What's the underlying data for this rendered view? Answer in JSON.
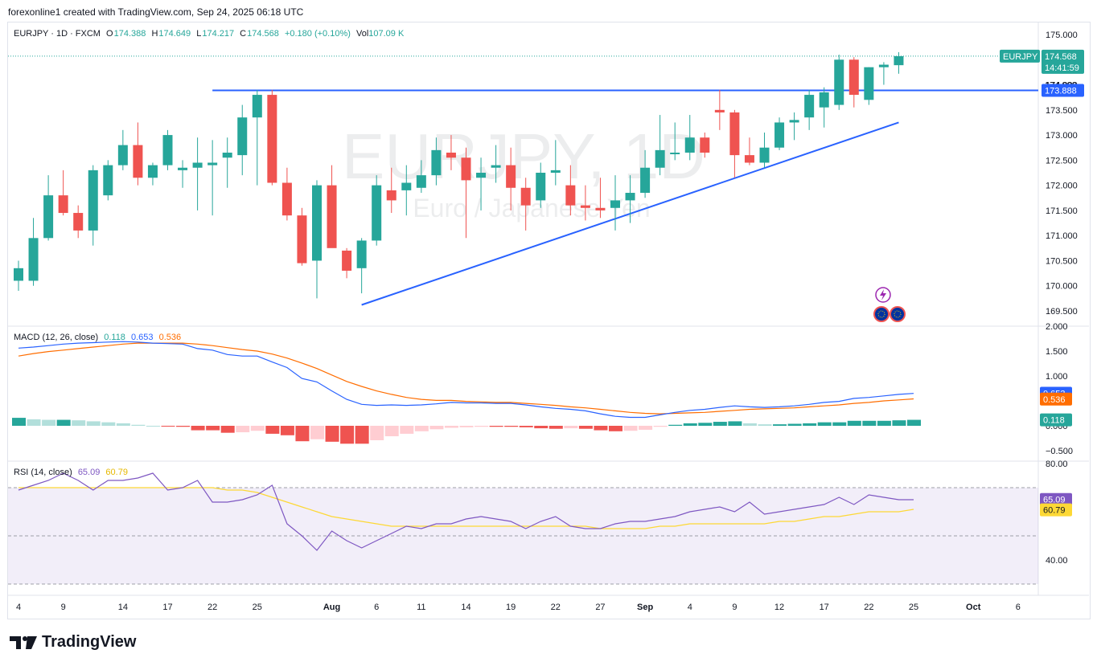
{
  "caption": "forexonline1 created with TradingView.com, Sep 24, 2025 06:18 UTC",
  "brand": "TradingView",
  "watermark": {
    "symbol": "EURJPY, 1D",
    "description": "Euro / Japanese Yen"
  },
  "legend": {
    "symbol": "EURJPY · 1D · FXCM",
    "o_label": "O",
    "o": "174.388",
    "h_label": "H",
    "h": "174.649",
    "l_label": "L",
    "l": "174.217",
    "c_label": "C",
    "c": "174.568",
    "change": "+0.180 (+0.10%)",
    "vol_label": "Vol",
    "vol": "107.09 K"
  },
  "price_badges": {
    "symbol": "EURJPY",
    "last": "174.568",
    "countdown": "14:41:59",
    "level": "173.888",
    "hidden_label": "174.000"
  },
  "macd_legend": {
    "name": "MACD (12, 26, close)",
    "hist": "0.118",
    "macd": "0.653",
    "signal": "0.536"
  },
  "rsi_legend": {
    "name": "RSI (14, close)",
    "rsi": "65.09",
    "ma": "60.79"
  },
  "colors": {
    "up": "#26a69a",
    "down": "#ef5350",
    "macd": "#2962ff",
    "signal": "#ff6d00",
    "rsi": "#7e57c2",
    "rsi_ma": "#fdd835",
    "trend": "#2962ff"
  },
  "chart_data": [
    {
      "type": "candlestick",
      "title": "EURJPY · 1D · FXCM",
      "y_ticks": [
        "175.000",
        "174.500",
        "174.000",
        "173.500",
        "173.000",
        "172.500",
        "172.000",
        "171.500",
        "171.000",
        "170.500",
        "170.000",
        "169.500"
      ],
      "ylim": [
        169.35,
        175.15
      ],
      "x_ticks": [
        {
          "i": 0,
          "label": "4"
        },
        {
          "i": 3,
          "label": "9"
        },
        {
          "i": 7,
          "label": "14"
        },
        {
          "i": 10,
          "label": "17"
        },
        {
          "i": 13,
          "label": "22"
        },
        {
          "i": 16,
          "label": "25"
        },
        {
          "i": 21,
          "label": "Aug"
        },
        {
          "i": 24,
          "label": "6"
        },
        {
          "i": 27,
          "label": "11"
        },
        {
          "i": 30,
          "label": "14"
        },
        {
          "i": 33,
          "label": "19"
        },
        {
          "i": 36,
          "label": "22"
        },
        {
          "i": 39,
          "label": "27"
        },
        {
          "i": 42,
          "label": "Sep"
        },
        {
          "i": 45,
          "label": "4"
        },
        {
          "i": 48,
          "label": "9"
        },
        {
          "i": 51,
          "label": "12"
        },
        {
          "i": 54,
          "label": "17"
        },
        {
          "i": 57,
          "label": "22"
        },
        {
          "i": 60,
          "label": "25"
        },
        {
          "i": 64,
          "label": "Oct"
        },
        {
          "i": 67,
          "label": "6"
        }
      ],
      "candles": [
        {
          "o": 170.1,
          "h": 170.5,
          "l": 169.9,
          "c": 170.35
        },
        {
          "o": 170.1,
          "h": 171.35,
          "l": 170.0,
          "c": 170.95
        },
        {
          "o": 170.95,
          "h": 172.2,
          "l": 170.9,
          "c": 171.8
        },
        {
          "o": 171.8,
          "h": 172.3,
          "l": 171.4,
          "c": 171.45
        },
        {
          "o": 171.45,
          "h": 171.6,
          "l": 170.95,
          "c": 171.1
        },
        {
          "o": 171.1,
          "h": 172.4,
          "l": 170.8,
          "c": 172.3
        },
        {
          "o": 171.8,
          "h": 172.5,
          "l": 171.7,
          "c": 172.4
        },
        {
          "o": 172.4,
          "h": 173.1,
          "l": 172.3,
          "c": 172.8
        },
        {
          "o": 172.8,
          "h": 173.25,
          "l": 172.0,
          "c": 172.15
        },
        {
          "o": 172.15,
          "h": 172.45,
          "l": 172.0,
          "c": 172.4
        },
        {
          "o": 172.4,
          "h": 173.1,
          "l": 172.3,
          "c": 173.0
        },
        {
          "o": 172.3,
          "h": 172.5,
          "l": 171.95,
          "c": 172.35
        },
        {
          "o": 172.35,
          "h": 172.95,
          "l": 171.5,
          "c": 172.45
        },
        {
          "o": 172.4,
          "h": 172.9,
          "l": 171.4,
          "c": 172.45
        },
        {
          "o": 172.55,
          "h": 172.95,
          "l": 171.95,
          "c": 172.65
        },
        {
          "o": 172.6,
          "h": 173.6,
          "l": 172.2,
          "c": 173.35
        },
        {
          "o": 173.35,
          "h": 173.9,
          "l": 172.0,
          "c": 173.8
        },
        {
          "o": 173.8,
          "h": 173.9,
          "l": 172.0,
          "c": 172.05
        },
        {
          "o": 172.05,
          "h": 172.35,
          "l": 171.3,
          "c": 171.4
        },
        {
          "o": 171.4,
          "h": 171.55,
          "l": 170.4,
          "c": 170.45
        },
        {
          "o": 170.5,
          "h": 172.1,
          "l": 169.75,
          "c": 172.0
        },
        {
          "o": 172.0,
          "h": 172.4,
          "l": 170.8,
          "c": 170.75
        },
        {
          "o": 170.7,
          "h": 170.75,
          "l": 170.15,
          "c": 170.3
        },
        {
          "o": 170.35,
          "h": 170.95,
          "l": 169.85,
          "c": 170.9
        },
        {
          "o": 170.9,
          "h": 172.2,
          "l": 170.8,
          "c": 172.0
        },
        {
          "o": 171.9,
          "h": 172.35,
          "l": 171.45,
          "c": 171.7
        },
        {
          "o": 171.9,
          "h": 172.4,
          "l": 171.4,
          "c": 172.05
        },
        {
          "o": 171.95,
          "h": 172.5,
          "l": 171.85,
          "c": 172.2
        },
        {
          "o": 172.2,
          "h": 172.95,
          "l": 172.0,
          "c": 172.7
        },
        {
          "o": 172.65,
          "h": 173.0,
          "l": 172.3,
          "c": 172.55
        },
        {
          "o": 172.55,
          "h": 172.75,
          "l": 170.95,
          "c": 172.1
        },
        {
          "o": 172.15,
          "h": 172.55,
          "l": 171.5,
          "c": 172.25
        },
        {
          "o": 172.35,
          "h": 172.8,
          "l": 172.05,
          "c": 172.4
        },
        {
          "o": 172.4,
          "h": 172.75,
          "l": 171.5,
          "c": 171.95
        },
        {
          "o": 171.95,
          "h": 172.15,
          "l": 171.1,
          "c": 171.6
        },
        {
          "o": 171.7,
          "h": 172.45,
          "l": 171.55,
          "c": 172.25
        },
        {
          "o": 172.25,
          "h": 172.9,
          "l": 172.0,
          "c": 172.3
        },
        {
          "o": 172.0,
          "h": 172.4,
          "l": 171.4,
          "c": 171.6
        },
        {
          "o": 171.6,
          "h": 172.0,
          "l": 171.3,
          "c": 171.55
        },
        {
          "o": 171.55,
          "h": 172.15,
          "l": 171.35,
          "c": 171.5
        },
        {
          "o": 171.55,
          "h": 172.2,
          "l": 171.1,
          "c": 171.7
        },
        {
          "o": 171.7,
          "h": 172.2,
          "l": 171.25,
          "c": 171.85
        },
        {
          "o": 171.85,
          "h": 172.7,
          "l": 171.75,
          "c": 172.35
        },
        {
          "o": 172.35,
          "h": 173.4,
          "l": 172.2,
          "c": 172.7
        },
        {
          "o": 172.65,
          "h": 173.25,
          "l": 172.5,
          "c": 172.65
        },
        {
          "o": 172.65,
          "h": 173.4,
          "l": 172.5,
          "c": 172.95
        },
        {
          "o": 172.95,
          "h": 173.05,
          "l": 172.55,
          "c": 172.65
        },
        {
          "o": 173.5,
          "h": 173.9,
          "l": 173.1,
          "c": 173.45
        },
        {
          "o": 173.45,
          "h": 173.5,
          "l": 172.15,
          "c": 172.6
        },
        {
          "o": 172.6,
          "h": 172.95,
          "l": 172.4,
          "c": 172.45
        },
        {
          "o": 172.45,
          "h": 173.05,
          "l": 172.35,
          "c": 172.75
        },
        {
          "o": 172.75,
          "h": 173.35,
          "l": 172.7,
          "c": 173.25
        },
        {
          "o": 173.25,
          "h": 173.45,
          "l": 172.9,
          "c": 173.3
        },
        {
          "o": 173.35,
          "h": 173.9,
          "l": 173.1,
          "c": 173.8
        },
        {
          "o": 173.55,
          "h": 173.95,
          "l": 173.15,
          "c": 173.85
        },
        {
          "o": 173.6,
          "h": 174.6,
          "l": 173.5,
          "c": 174.5
        },
        {
          "o": 174.5,
          "h": 174.55,
          "l": 173.55,
          "c": 173.8
        },
        {
          "o": 173.7,
          "h": 174.35,
          "l": 173.6,
          "c": 174.35
        },
        {
          "o": 174.35,
          "h": 174.45,
          "l": 174.0,
          "c": 174.4
        },
        {
          "o": 174.39,
          "h": 174.65,
          "l": 174.22,
          "c": 174.57
        }
      ],
      "horizontal_level": 173.888,
      "trendline": [
        {
          "i": 23,
          "y": 169.62
        },
        {
          "i": 59,
          "y": 173.25
        }
      ]
    },
    {
      "type": "line",
      "title": "MACD (12, 26, close)",
      "y_ticks": [
        "2.000",
        "1.500",
        "1.000",
        "0.500",
        "0.000",
        "−0.500"
      ],
      "ylim": [
        -0.72,
        2.05
      ],
      "series": [
        {
          "name": "MACD",
          "values": [
            1.56,
            1.58,
            1.61,
            1.64,
            1.66,
            1.67,
            1.68,
            1.69,
            1.68,
            1.66,
            1.65,
            1.64,
            1.55,
            1.52,
            1.43,
            1.4,
            1.4,
            1.28,
            1.17,
            0.95,
            0.88,
            0.7,
            0.53,
            0.43,
            0.41,
            0.42,
            0.41,
            0.42,
            0.44,
            0.47,
            0.46,
            0.46,
            0.45,
            0.45,
            0.42,
            0.38,
            0.35,
            0.33,
            0.3,
            0.24,
            0.19,
            0.17,
            0.17,
            0.22,
            0.27,
            0.31,
            0.33,
            0.37,
            0.4,
            0.38,
            0.37,
            0.38,
            0.4,
            0.43,
            0.47,
            0.49,
            0.55,
            0.57,
            0.6,
            0.63,
            0.65
          ]
        },
        {
          "name": "Signal",
          "values": [
            1.4,
            1.45,
            1.49,
            1.52,
            1.55,
            1.58,
            1.61,
            1.64,
            1.66,
            1.66,
            1.66,
            1.66,
            1.64,
            1.61,
            1.57,
            1.53,
            1.5,
            1.44,
            1.36,
            1.26,
            1.15,
            1.02,
            0.89,
            0.79,
            0.7,
            0.63,
            0.57,
            0.53,
            0.51,
            0.51,
            0.49,
            0.48,
            0.47,
            0.47,
            0.45,
            0.43,
            0.41,
            0.38,
            0.36,
            0.33,
            0.3,
            0.27,
            0.25,
            0.24,
            0.25,
            0.26,
            0.27,
            0.29,
            0.31,
            0.33,
            0.34,
            0.35,
            0.36,
            0.38,
            0.4,
            0.42,
            0.45,
            0.47,
            0.5,
            0.52,
            0.54
          ]
        },
        {
          "name": "Histogram",
          "values": [
            0.16,
            0.13,
            0.12,
            0.12,
            0.11,
            0.09,
            0.07,
            0.05,
            0.02,
            0.0,
            -0.01,
            -0.02,
            -0.09,
            -0.09,
            -0.14,
            -0.13,
            -0.1,
            -0.16,
            -0.19,
            -0.31,
            -0.27,
            -0.32,
            -0.36,
            -0.36,
            -0.29,
            -0.21,
            -0.16,
            -0.11,
            -0.07,
            -0.04,
            -0.03,
            -0.02,
            -0.02,
            -0.02,
            -0.03,
            -0.05,
            -0.06,
            -0.05,
            -0.06,
            -0.09,
            -0.11,
            -0.1,
            -0.08,
            -0.02,
            0.02,
            0.05,
            0.06,
            0.08,
            0.09,
            0.05,
            0.03,
            0.03,
            0.04,
            0.05,
            0.07,
            0.07,
            0.1,
            0.1,
            0.1,
            0.11,
            0.12
          ]
        }
      ]
    },
    {
      "type": "line",
      "title": "RSI (14, close)",
      "y_ticks": [
        "80.00",
        "65.09",
        "60.79",
        "40.00"
      ],
      "ylim": [
        30,
        80
      ],
      "bands": [
        70,
        30,
        50
      ],
      "series": [
        {
          "name": "RSI",
          "values": [
            69,
            71,
            73,
            76,
            73,
            69,
            73,
            73,
            74,
            76,
            69,
            70,
            73,
            64,
            64,
            65,
            67,
            71,
            55,
            50,
            44,
            52,
            48,
            45,
            48,
            51,
            54,
            53,
            55,
            55,
            57,
            58,
            57,
            56,
            53,
            56,
            58,
            54,
            53,
            53,
            55,
            56,
            56,
            57,
            58,
            60,
            61,
            62,
            60,
            64,
            59,
            60,
            61,
            62,
            63,
            66,
            63,
            67,
            66,
            65,
            65
          ]
        },
        {
          "name": "RSI-based MA",
          "values": [
            70,
            70,
            70,
            70,
            70,
            70,
            70,
            70,
            70,
            70,
            70,
            70,
            70,
            70,
            69,
            69,
            68,
            66,
            64,
            62,
            60,
            58,
            57,
            56,
            55,
            54,
            54,
            54,
            54,
            54,
            54,
            54,
            54,
            54,
            54,
            54,
            54,
            54,
            54,
            53,
            53,
            53,
            53,
            54,
            54,
            55,
            55,
            55,
            55,
            55,
            55,
            56,
            56,
            57,
            58,
            58,
            59,
            60,
            60,
            60,
            61
          ]
        }
      ]
    }
  ]
}
